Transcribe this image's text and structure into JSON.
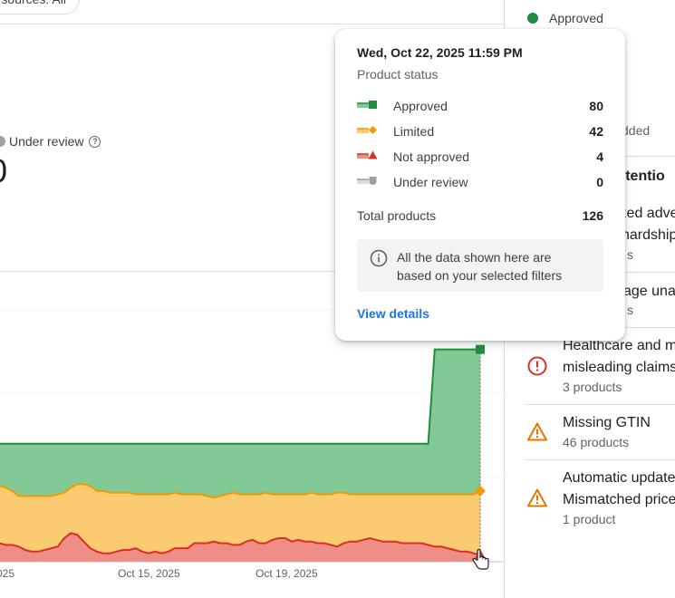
{
  "filters": {
    "sources_chip": "sources: All"
  },
  "summary": {
    "under_review_label": "Under review",
    "under_review_value": "0"
  },
  "chart_data": {
    "type": "area",
    "stacked": true,
    "x_tick_labels": [
      "025",
      "Oct 15, 2025",
      "Oct 19, 2025"
    ],
    "series": [
      {
        "name": "Approved",
        "color": "#1e8e3e",
        "fill": "#81c995"
      },
      {
        "name": "Limited",
        "color": "#f29900",
        "fill": "#fbcb72"
      },
      {
        "name": "Not approved",
        "color": "#d93025",
        "fill": "#ee8e86"
      }
    ],
    "approved_top": [
      70,
      70,
      70,
      70,
      70,
      70,
      70,
      70,
      70,
      70,
      70,
      70,
      70,
      70,
      70,
      70,
      70,
      70,
      70,
      70,
      70,
      70,
      70,
      70,
      70,
      70,
      70,
      70,
      70,
      70,
      70,
      70,
      70,
      70,
      70,
      70,
      70,
      70,
      70,
      70,
      70,
      70,
      70,
      70,
      70,
      70,
      70,
      70,
      70,
      70,
      70,
      70,
      70,
      70,
      70,
      70,
      70,
      70,
      70,
      70,
      70,
      70,
      70,
      70,
      70,
      70,
      70,
      70,
      126,
      126,
      126,
      126,
      126,
      126,
      126,
      126
    ],
    "limited_top": [
      46,
      45,
      44,
      42,
      39,
      39,
      39,
      39,
      39,
      39,
      40,
      41,
      44,
      46,
      46,
      45,
      42,
      42,
      41,
      41,
      41,
      41,
      40,
      40,
      40,
      40,
      40,
      40,
      41,
      40,
      40,
      40,
      40,
      39,
      38,
      39,
      40,
      41,
      40,
      40,
      40,
      40,
      41,
      40,
      40,
      40,
      40,
      40,
      40,
      41,
      40,
      40,
      40,
      41,
      41,
      40,
      40,
      40,
      40,
      40,
      40,
      40,
      40,
      40,
      40,
      40,
      40,
      40,
      40,
      40,
      40,
      40,
      40,
      40,
      40,
      42
    ],
    "not_approved_top": [
      10,
      11,
      10,
      10,
      9,
      7,
      6,
      6,
      7,
      8,
      9,
      14,
      17,
      16,
      12,
      8,
      6,
      5,
      5,
      6,
      7,
      7,
      8,
      6,
      5,
      6,
      5,
      6,
      8,
      8,
      8,
      11,
      11,
      11,
      12,
      11,
      11,
      10,
      10,
      12,
      13,
      11,
      11,
      13,
      14,
      14,
      12,
      13,
      12,
      12,
      11,
      11,
      10,
      9,
      11,
      12,
      12,
      13,
      14,
      13,
      12,
      12,
      12,
      11,
      11,
      11,
      11,
      10,
      9,
      9,
      8,
      7,
      6,
      6,
      5,
      4
    ],
    "tooltip_index": 75
  },
  "tooltip": {
    "date": "Wed, Oct 22, 2025 11:59 PM",
    "subtitle": "Product status",
    "rows": [
      {
        "label": "Approved",
        "value": "80",
        "color": "#1e8e3e",
        "marker": "square"
      },
      {
        "label": "Limited",
        "value": "42",
        "color": "#f29900",
        "marker": "diamond"
      },
      {
        "label": "Not approved",
        "value": "4",
        "color": "#d93025",
        "marker": "triangle"
      },
      {
        "label": "Under review",
        "value": "0",
        "color": "#9aa0a6",
        "marker": "shield"
      }
    ],
    "total_label": "Total products",
    "total_value": "126",
    "note": "All the data shown here are based on your selected filters",
    "link": "View details"
  },
  "right_panel": {
    "approved_label": "Approved",
    "added_fragment": "dded",
    "attention_heading": "attentio",
    "issues": [
      {
        "line1": "ized adve",
        "line2": "hardship",
        "count": "s",
        "icon": "none"
      },
      {
        "line1": "age una",
        "line2": "",
        "count": "s",
        "icon": "none"
      },
      {
        "line1": "Healthcare and m",
        "line2": "misleading claims",
        "count": "3 products",
        "icon": "error-icon"
      },
      {
        "line1": "Missing GTIN",
        "line2": "",
        "count": "46 products",
        "icon": "warning-icon"
      },
      {
        "line1": "Automatic update",
        "line2": "Mismatched price",
        "count": "1 product",
        "icon": "warning-icon"
      }
    ]
  }
}
